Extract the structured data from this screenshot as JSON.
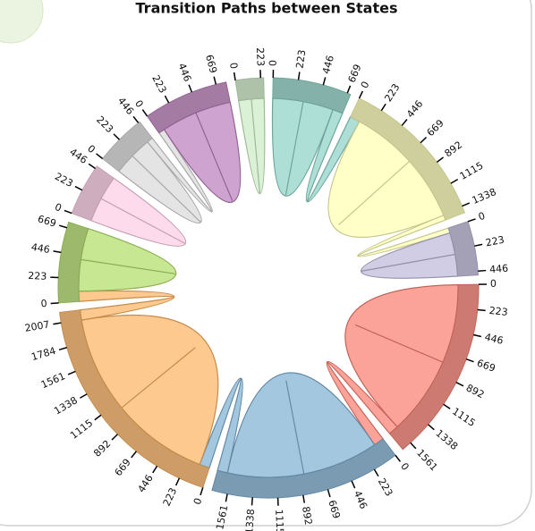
{
  "chart_data": {
    "type": "chord",
    "title": "Transition Paths between States",
    "groups": [
      {
        "color": "#8dd3c7",
        "ticks": [
          0,
          223,
          446,
          669
        ]
      },
      {
        "color": "#ffffb3",
        "ticks": [
          0,
          223,
          446,
          669,
          892,
          1115,
          1338
        ]
      },
      {
        "color": "#bebada",
        "ticks": [
          0,
          223,
          446
        ]
      },
      {
        "color": "#fb8072",
        "ticks": [
          0,
          223,
          446,
          669,
          892,
          1115,
          1338,
          1561
        ]
      },
      {
        "color": "#80b1d3",
        "ticks": [
          0,
          223,
          446,
          669,
          892,
          1115,
          1338,
          1561
        ]
      },
      {
        "color": "#fdb462",
        "ticks": [
          0,
          223,
          446,
          669,
          892,
          1115,
          1338,
          1561,
          1784,
          2007
        ]
      },
      {
        "color": "#b3de69",
        "ticks": [
          0,
          223,
          446,
          669
        ]
      },
      {
        "color": "#fccde5",
        "ticks": [
          0,
          223,
          446
        ]
      },
      {
        "color": "#d9d9d9",
        "ticks": [
          0,
          223,
          446
        ]
      },
      {
        "color": "#bc80bd",
        "ticks": [
          0,
          223,
          446,
          669
        ]
      },
      {
        "color": "#ccebc5",
        "ticks": [
          0,
          223
        ]
      }
    ],
    "matrix": [
      [
        600,
        100,
        0,
        0,
        0,
        0,
        0,
        0,
        0,
        0,
        0
      ],
      [
        100,
        1250,
        50,
        0,
        0,
        0,
        0,
        0,
        0,
        0,
        0
      ],
      [
        0,
        50,
        430,
        0,
        0,
        0,
        0,
        0,
        0,
        0,
        0
      ],
      [
        0,
        0,
        0,
        1550,
        100,
        0,
        0,
        0,
        0,
        0,
        0
      ],
      [
        0,
        0,
        0,
        100,
        1500,
        100,
        0,
        0,
        0,
        0,
        0
      ],
      [
        0,
        0,
        0,
        0,
        100,
        1900,
        100,
        0,
        0,
        0,
        0
      ],
      [
        0,
        0,
        0,
        0,
        0,
        100,
        620,
        0,
        0,
        0,
        0
      ],
      [
        0,
        0,
        0,
        0,
        0,
        0,
        0,
        470,
        0,
        0,
        0
      ],
      [
        0,
        0,
        0,
        0,
        0,
        0,
        0,
        0,
        400,
        60,
        0
      ],
      [
        0,
        0,
        0,
        0,
        0,
        0,
        0,
        0,
        60,
        700,
        0
      ],
      [
        0,
        0,
        0,
        0,
        0,
        0,
        0,
        0,
        0,
        0,
        250
      ]
    ]
  }
}
